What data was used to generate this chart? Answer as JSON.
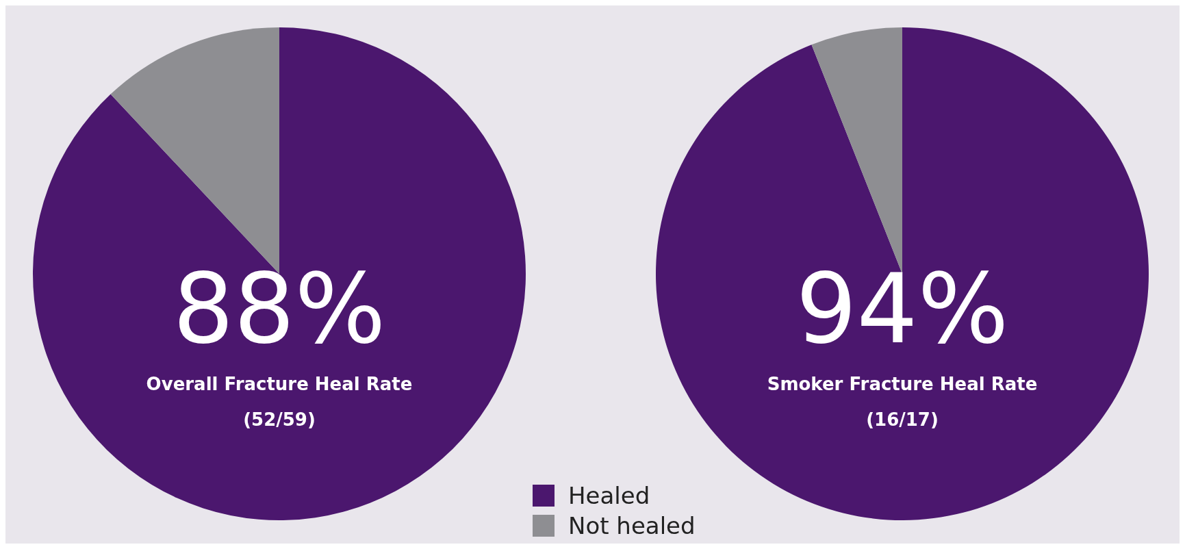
{
  "chart_data": [
    {
      "type": "pie",
      "title": "Overall Fracture Heal Rate",
      "subtitle": "(52/59)",
      "categories": [
        "Healed",
        "Not healed"
      ],
      "values": [
        88,
        12
      ],
      "colors": [
        "#4b176e",
        "#8e8e92"
      ],
      "value_labels": [
        "88%",
        null
      ],
      "legend": "bottom right"
    },
    {
      "type": "pie",
      "title": "Smoker Fracture Heal Rate",
      "subtitle": "(16/17)",
      "categories": [
        null,
        null
      ],
      "values": [
        94,
        6
      ],
      "colors": [
        "#4b176e",
        "#8e8e92"
      ],
      "value_labels": [
        "94%",
        null
      ]
    }
  ]
}
